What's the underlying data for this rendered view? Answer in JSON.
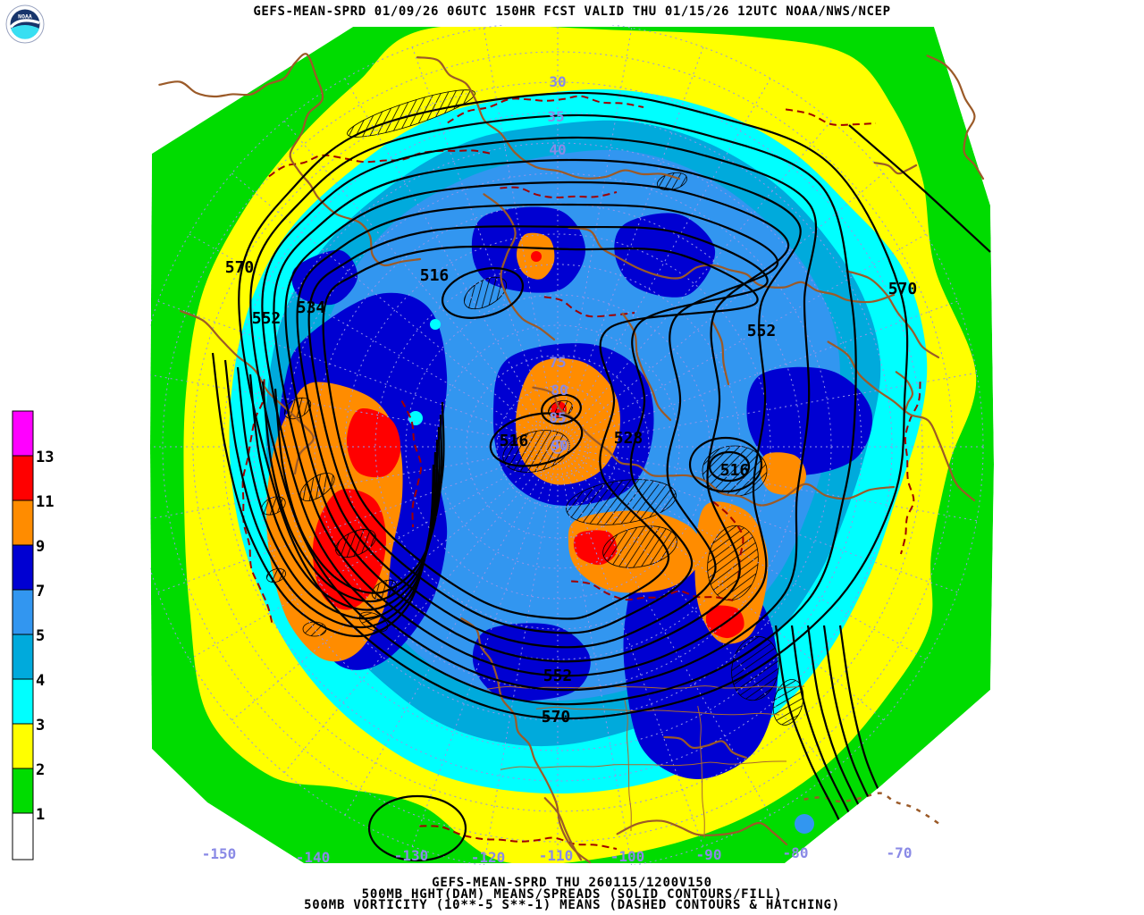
{
  "header": {
    "title": "GEFS-MEAN-SPRD 01/09/26 06UTC 150HR FCST VALID THU 01/15/26 12UTC NOAA/NWS/NCEP"
  },
  "logo": {
    "text": "NOAA"
  },
  "legend": {
    "items": [
      {
        "value": "13",
        "color": "#FF00FF",
        "name": "magenta"
      },
      {
        "value": "11",
        "color": "#FF0000",
        "name": "red"
      },
      {
        "value": "9",
        "color": "#FF8C00",
        "name": "orange"
      },
      {
        "value": "7",
        "color": "#0000D2",
        "name": "dark-blue"
      },
      {
        "value": "5",
        "color": "#3296F0",
        "name": "blue"
      },
      {
        "value": "4",
        "color": "#00AADC",
        "name": "cerulean"
      },
      {
        "value": "3",
        "color": "#00FFFF",
        "name": "cyan"
      },
      {
        "value": "2",
        "color": "#FFFF00",
        "name": "yellow"
      },
      {
        "value": "1",
        "color": "#00DC00",
        "name": "green"
      },
      {
        "value": "",
        "color": "#FFFFFF",
        "name": "white"
      }
    ]
  },
  "map": {
    "contour_labels": [
      {
        "text": "570"
      },
      {
        "text": "534"
      },
      {
        "text": "552"
      },
      {
        "text": "516"
      },
      {
        "text": "552"
      },
      {
        "text": "570"
      },
      {
        "text": "516"
      },
      {
        "text": "528"
      },
      {
        "text": "516"
      },
      {
        "text": "552"
      },
      {
        "text": "570"
      }
    ],
    "latitude_labels": [
      {
        "text": "30"
      },
      {
        "text": "35"
      },
      {
        "text": "40"
      },
      {
        "text": "75"
      },
      {
        "text": "80"
      },
      {
        "text": "85"
      },
      {
        "text": "90"
      }
    ],
    "longitude_labels": [
      {
        "text": "-150"
      },
      {
        "text": "-140"
      },
      {
        "text": "-130"
      },
      {
        "text": "-120"
      },
      {
        "text": "-110"
      },
      {
        "text": "-100"
      },
      {
        "text": "-90"
      },
      {
        "text": "-80"
      },
      {
        "text": "-70"
      }
    ]
  },
  "footer": {
    "line1": "GEFS-MEAN-SPRD THU 260115/1200V150",
    "line2": "500MB HGHT(DAM) MEANS/SPREADS (SOLID CONTOURS/FILL)",
    "line3": "500MB VORTICITY (10**-5 S**-1) MEANS (DASHED CONTOURS & HATCHING)"
  },
  "chart_data": {
    "type": "heatmap",
    "title": "GEFS-MEAN-SPRD 01/09/26 06UTC 150HR FCST VALID THU 01/15/26 12UTC NOAA/NWS/NCEP",
    "valid": "THU 260115/1200V150",
    "projection": "Northern Hemisphere polar stereographic",
    "fields": [
      {
        "name": "500MB HGHT (DAM) ensemble spread",
        "style": "color fill",
        "levels": [
          1,
          2,
          3,
          4,
          5,
          7,
          9,
          11,
          13
        ],
        "colors": [
          "#FFFFFF",
          "#00DC00",
          "#FFFF00",
          "#00FFFF",
          "#00AADC",
          "#3296F0",
          "#0000D2",
          "#FF8C00",
          "#FF0000",
          "#FF00FF"
        ]
      },
      {
        "name": "500MB HGHT (DAM) ensemble mean",
        "style": "solid black contours",
        "labeled_values": [
          516,
          528,
          534,
          552,
          570
        ]
      },
      {
        "name": "500MB VORTICITY (10**-5 S**-1) means",
        "style": "dashed dark-red contours and black hatching"
      }
    ],
    "longitude_ticks": [
      "-150",
      "-140",
      "-130",
      "-120",
      "-110",
      "-100",
      "-90",
      "-80",
      "-70"
    ],
    "latitude_ticks": [
      "30",
      "35",
      "40",
      "75",
      "80",
      "85",
      "90"
    ]
  }
}
